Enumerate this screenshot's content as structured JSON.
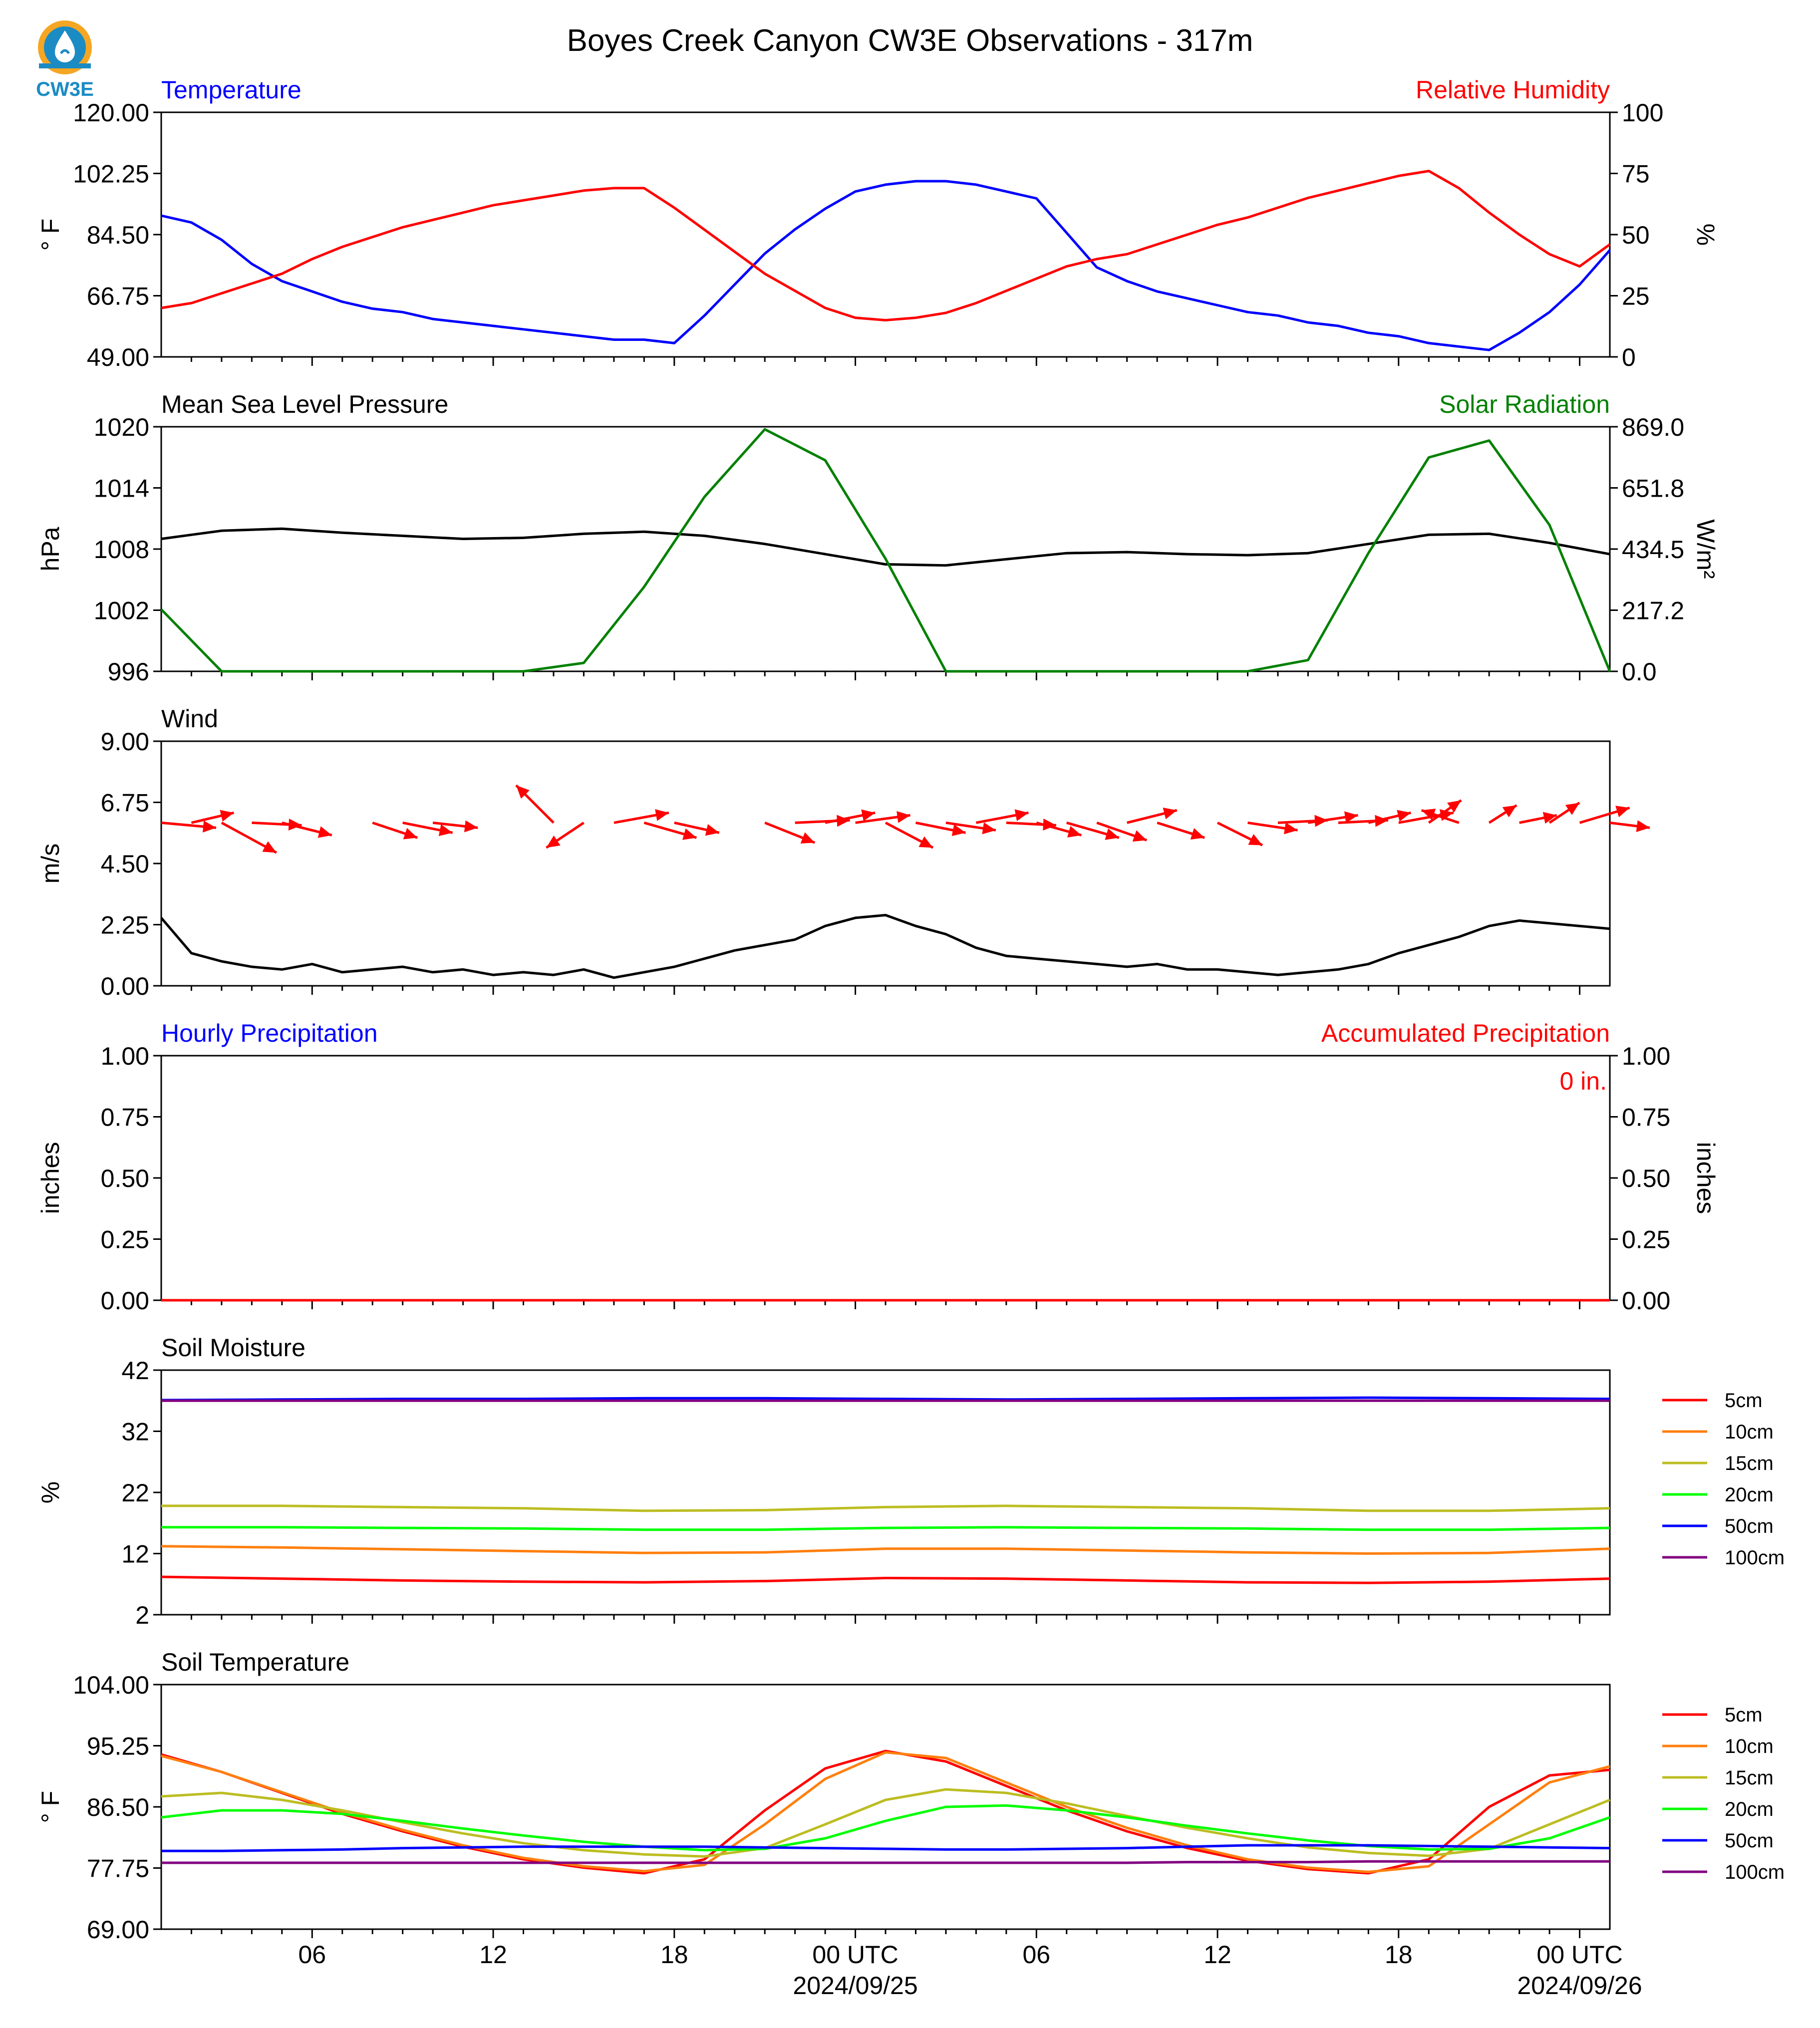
{
  "figure": {
    "title": "Boyes Creek Canyon CW3E Observations - 317m",
    "logo_text": "CW3E"
  },
  "colors": {
    "blue": "#0000ff",
    "red": "#ff0000",
    "green": "#008000",
    "black": "#000000",
    "orange": "#ff7f0e",
    "olive": "#bcbd22",
    "lime": "#00ff00",
    "purple": "#800080"
  },
  "time_axis": {
    "start": "2024-09-24 01:00 UTC",
    "end": "2024-09-26 01:00 UTC",
    "tick_labels": [
      "06",
      "12",
      "18",
      "00 UTC",
      "06",
      "12",
      "18",
      "00 UTC"
    ],
    "date_labels": [
      "2024/09/25",
      "2024/09/26"
    ]
  },
  "chart_data": [
    {
      "type": "line",
      "panel": "temperature_rh",
      "left_title": "Temperature",
      "right_title": "Relative Humidity",
      "ylabel": "° F",
      "ylabel_right": "%",
      "ylim": [
        49.0,
        120.0
      ],
      "ylim_right": [
        0,
        100
      ],
      "yticks": [
        "49.00",
        "66.75",
        "84.50",
        "102.25",
        "120.00"
      ],
      "yticks_right": [
        "0",
        "25",
        "50",
        "75",
        "100"
      ],
      "x_hours": [
        0,
        1,
        2,
        3,
        4,
        5,
        6,
        7,
        8,
        9,
        10,
        11,
        12,
        13,
        14,
        15,
        16,
        17,
        18,
        19,
        20,
        21,
        22,
        23,
        24,
        25,
        26,
        27,
        28,
        29,
        30,
        31,
        32,
        33,
        34,
        35,
        36,
        37,
        38,
        39,
        40,
        41,
        42,
        43,
        44,
        45,
        46,
        47,
        48
      ],
      "series": [
        {
          "name": "Temperature",
          "axis": "left",
          "color": "blue",
          "values": [
            90,
            88,
            83,
            76,
            71,
            68,
            65,
            63,
            62,
            60,
            59,
            58,
            57,
            56,
            55,
            54,
            54,
            53,
            61,
            70,
            79,
            86,
            92,
            97,
            99,
            100,
            100,
            99,
            97,
            95,
            85,
            75,
            71,
            68,
            66,
            64,
            62,
            61,
            59,
            58,
            56,
            55,
            53,
            52,
            51,
            56,
            62,
            70,
            80
          ]
        },
        {
          "name": "Relative Humidity",
          "axis": "right",
          "color": "red",
          "values": [
            20,
            22,
            26,
            30,
            34,
            40,
            45,
            49,
            53,
            56,
            59,
            62,
            64,
            66,
            68,
            69,
            69,
            61,
            52,
            43,
            34,
            27,
            20,
            16,
            15,
            16,
            18,
            22,
            27,
            32,
            37,
            40,
            42,
            46,
            50,
            54,
            57,
            61,
            65,
            68,
            71,
            74,
            76,
            69,
            59,
            50,
            42,
            37,
            46
          ]
        }
      ]
    },
    {
      "type": "line",
      "panel": "pressure_solar",
      "left_title": "Mean Sea Level Pressure",
      "right_title": "Solar Radiation",
      "ylabel": "hPa",
      "ylabel_right": "W/m²",
      "ylim": [
        996,
        1020
      ],
      "ylim_right": [
        0.0,
        869.0
      ],
      "yticks": [
        "996",
        "1002",
        "1008",
        "1014",
        "1020"
      ],
      "yticks_right": [
        "0.0",
        "217.2",
        "434.5",
        "651.8",
        "869.0"
      ],
      "x_hours": [
        0,
        2,
        4,
        6,
        8,
        10,
        12,
        14,
        16,
        18,
        20,
        22,
        24,
        26,
        28,
        30,
        32,
        34,
        36,
        38,
        40,
        42,
        44,
        46,
        48
      ],
      "series": [
        {
          "name": "Mean Sea Level Pressure",
          "axis": "left",
          "color": "black",
          "values": [
            1009.0,
            1009.8,
            1010.0,
            1009.6,
            1009.3,
            1009.0,
            1009.1,
            1009.5,
            1009.7,
            1009.3,
            1008.5,
            1007.5,
            1006.5,
            1006.4,
            1007.0,
            1007.6,
            1007.7,
            1007.5,
            1007.4,
            1007.6,
            1008.5,
            1009.4,
            1009.5,
            1008.6,
            1007.5
          ]
        },
        {
          "name": "Solar Radiation",
          "axis": "right",
          "color": "green",
          "values": [
            220,
            0,
            0,
            0,
            0,
            0,
            0,
            30,
            300,
            620,
            860,
            750,
            400,
            0,
            0,
            0,
            0,
            0,
            0,
            40,
            420,
            760,
            820,
            520,
            0
          ]
        }
      ]
    },
    {
      "type": "line",
      "panel": "wind",
      "left_title": "Wind",
      "ylabel": "m/s",
      "ylim": [
        0.0,
        9.0
      ],
      "yticks": [
        "0.00",
        "2.25",
        "4.50",
        "6.75",
        "9.00"
      ],
      "x_hours": [
        0,
        1,
        2,
        3,
        4,
        5,
        6,
        7,
        8,
        9,
        10,
        11,
        12,
        13,
        14,
        15,
        16,
        17,
        18,
        19,
        20,
        21,
        22,
        23,
        24,
        25,
        26,
        27,
        28,
        29,
        30,
        31,
        32,
        33,
        34,
        35,
        36,
        37,
        38,
        39,
        40,
        41,
        42,
        43,
        44,
        45,
        46,
        47,
        48
      ],
      "series": [
        {
          "name": "Wind speed",
          "color": "black",
          "values": [
            2.5,
            1.2,
            0.9,
            0.7,
            0.6,
            0.8,
            0.5,
            0.6,
            0.7,
            0.5,
            0.6,
            0.4,
            0.5,
            0.4,
            0.6,
            0.3,
            0.5,
            0.7,
            1.0,
            1.3,
            1.5,
            1.7,
            2.2,
            2.5,
            2.6,
            2.2,
            1.9,
            1.4,
            1.1,
            1.0,
            0.9,
            0.8,
            0.7,
            0.8,
            0.6,
            0.6,
            0.5,
            0.4,
            0.5,
            0.6,
            0.8,
            1.2,
            1.5,
            1.8,
            2.2,
            2.4,
            2.3,
            2.2,
            2.1
          ]
        }
      ],
      "wind_vectors_ms": {
        "hours": [
          0,
          1,
          2,
          3,
          4,
          7,
          8,
          9,
          13,
          14,
          15,
          16,
          17,
          20,
          21,
          22,
          23,
          24,
          25,
          26,
          27,
          28,
          29,
          30,
          31,
          32,
          33,
          35,
          36,
          37,
          38,
          39,
          40,
          41,
          42,
          43,
          44,
          45,
          46,
          47,
          48
        ],
        "u": [
          2.2,
          1.7,
          2.2,
          2.0,
          2.0,
          1.8,
          2.0,
          1.8,
          -1.5,
          -1.5,
          2.2,
          2.1,
          1.8,
          2.0,
          2.2,
          2.0,
          2.2,
          1.9,
          2.0,
          2.0,
          2.1,
          2.0,
          1.8,
          2.1,
          2.0,
          2.0,
          1.9,
          1.8,
          2.0,
          2.0,
          2.0,
          2.0,
          1.7,
          2.2,
          1.3,
          -1.5,
          1.1,
          1.5,
          1.2,
          2.0,
          1.6
        ],
        "v": [
          -0.2,
          0.4,
          -1.2,
          -0.1,
          -0.5,
          -0.6,
          -0.4,
          -0.2,
          1.5,
          -1.0,
          0.4,
          -0.6,
          -0.4,
          -0.8,
          0.1,
          0.4,
          0.3,
          -1.0,
          -0.4,
          -0.3,
          0.4,
          -0.1,
          -0.5,
          -0.6,
          -0.7,
          0.5,
          -0.6,
          -0.9,
          -0.3,
          0.1,
          0.3,
          0.1,
          0.4,
          0.4,
          0.9,
          0.5,
          0.7,
          0.3,
          0.8,
          0.6,
          -0.2
        ]
      }
    },
    {
      "type": "line",
      "panel": "precipitation",
      "left_title": "Hourly Precipitation",
      "right_title": "Accumulated Precipitation",
      "ylabel": "inches",
      "ylabel_right": "inches",
      "ylim": [
        0.0,
        1.0
      ],
      "ylim_right": [
        0.0,
        1.0
      ],
      "yticks": [
        "0.00",
        "0.25",
        "0.50",
        "0.75",
        "1.00"
      ],
      "yticks_right": [
        "0.00",
        "0.25",
        "0.50",
        "0.75",
        "1.00"
      ],
      "annotation": "0 in.",
      "x_hours": [
        0,
        48
      ],
      "series": [
        {
          "name": "Hourly Precipitation",
          "axis": "left",
          "color": "blue",
          "values": [
            0,
            0
          ]
        },
        {
          "name": "Accumulated Precipitation",
          "axis": "right",
          "color": "red",
          "values": [
            0,
            0
          ]
        }
      ]
    },
    {
      "type": "line",
      "panel": "soil_moisture",
      "left_title": "Soil Moisture",
      "ylabel": "%",
      "ylim": [
        2,
        42
      ],
      "yticks": [
        "2",
        "12",
        "22",
        "32",
        "42"
      ],
      "legend": "right",
      "x_hours": [
        0,
        4,
        8,
        12,
        16,
        20,
        24,
        28,
        32,
        36,
        40,
        44,
        48
      ],
      "series": [
        {
          "name": "5cm",
          "color": "red",
          "values": [
            8.2,
            7.9,
            7.6,
            7.4,
            7.3,
            7.5,
            8.0,
            7.9,
            7.6,
            7.3,
            7.2,
            7.4,
            7.9
          ]
        },
        {
          "name": "10cm",
          "color": "orange",
          "values": [
            13.2,
            13.0,
            12.7,
            12.4,
            12.1,
            12.2,
            12.8,
            12.8,
            12.5,
            12.2,
            12.0,
            12.1,
            12.8
          ]
        },
        {
          "name": "15cm",
          "color": "olive",
          "values": [
            19.8,
            19.8,
            19.6,
            19.4,
            19.0,
            19.1,
            19.6,
            19.8,
            19.6,
            19.4,
            19.0,
            19.0,
            19.4
          ]
        },
        {
          "name": "20cm",
          "color": "lime",
          "values": [
            16.3,
            16.3,
            16.2,
            16.1,
            15.9,
            15.9,
            16.2,
            16.3,
            16.2,
            16.1,
            15.9,
            15.9,
            16.2
          ]
        },
        {
          "name": "50cm",
          "color": "blue",
          "values": [
            37.1,
            37.2,
            37.3,
            37.3,
            37.4,
            37.4,
            37.3,
            37.2,
            37.3,
            37.4,
            37.5,
            37.4,
            37.3
          ]
        },
        {
          "name": "100cm",
          "color": "purple",
          "values": [
            37.0,
            37.0,
            37.0,
            37.0,
            37.0,
            37.0,
            37.0,
            37.0,
            37.0,
            37.0,
            37.0,
            37.0,
            37.0
          ]
        }
      ]
    },
    {
      "type": "line",
      "panel": "soil_temperature",
      "left_title": "Soil Temperature",
      "ylabel": "° F",
      "ylim": [
        69.0,
        104.0
      ],
      "yticks": [
        "69.00",
        "77.75",
        "86.50",
        "95.25",
        "104.00"
      ],
      "legend": "right",
      "x_hours": [
        0,
        2,
        4,
        6,
        8,
        10,
        12,
        14,
        16,
        18,
        20,
        22,
        24,
        26,
        28,
        30,
        32,
        34,
        36,
        38,
        40,
        42,
        44,
        46,
        48
      ],
      "series": [
        {
          "name": "5cm",
          "color": "red",
          "values": [
            94.0,
            91.5,
            88.5,
            85.5,
            83.0,
            80.8,
            79.0,
            77.8,
            77.0,
            79.0,
            86.0,
            92.0,
            94.5,
            93.0,
            89.5,
            86.0,
            83.0,
            80.6,
            78.8,
            77.6,
            77.0,
            79.0,
            86.5,
            91.0,
            91.8
          ]
        },
        {
          "name": "10cm",
          "color": "orange",
          "values": [
            93.8,
            91.5,
            88.6,
            85.7,
            83.2,
            81.0,
            79.2,
            78.0,
            77.3,
            78.2,
            84.0,
            90.5,
            94.3,
            93.5,
            90.0,
            86.5,
            83.5,
            81.0,
            79.0,
            77.8,
            77.2,
            78.0,
            84.0,
            90.0,
            92.3
          ]
        },
        {
          "name": "15cm",
          "color": "olive",
          "values": [
            88.0,
            88.5,
            87.5,
            86.0,
            84.3,
            82.7,
            81.3,
            80.3,
            79.7,
            79.4,
            80.6,
            84.0,
            87.5,
            89.0,
            88.5,
            87.0,
            85.2,
            83.5,
            82.0,
            80.7,
            79.9,
            79.5,
            80.5,
            84.0,
            87.5
          ]
        },
        {
          "name": "20cm",
          "color": "lime",
          "values": [
            85.0,
            86.0,
            86.0,
            85.5,
            84.5,
            83.4,
            82.4,
            81.5,
            80.8,
            80.3,
            80.5,
            82.0,
            84.5,
            86.5,
            86.7,
            86.0,
            85.0,
            83.8,
            82.7,
            81.7,
            80.9,
            80.4,
            80.5,
            82.0,
            85.0
          ]
        },
        {
          "name": "50cm",
          "color": "blue",
          "values": [
            80.2,
            80.2,
            80.3,
            80.4,
            80.6,
            80.7,
            80.8,
            80.8,
            80.8,
            80.8,
            80.7,
            80.6,
            80.5,
            80.4,
            80.4,
            80.5,
            80.6,
            80.8,
            81.0,
            81.0,
            81.0,
            80.9,
            80.8,
            80.7,
            80.6
          ]
        },
        {
          "name": "100cm",
          "color": "purple",
          "values": [
            78.5,
            78.5,
            78.5,
            78.5,
            78.5,
            78.5,
            78.5,
            78.5,
            78.5,
            78.5,
            78.5,
            78.5,
            78.5,
            78.5,
            78.5,
            78.5,
            78.5,
            78.6,
            78.6,
            78.6,
            78.7,
            78.7,
            78.7,
            78.7,
            78.7
          ]
        }
      ]
    }
  ]
}
